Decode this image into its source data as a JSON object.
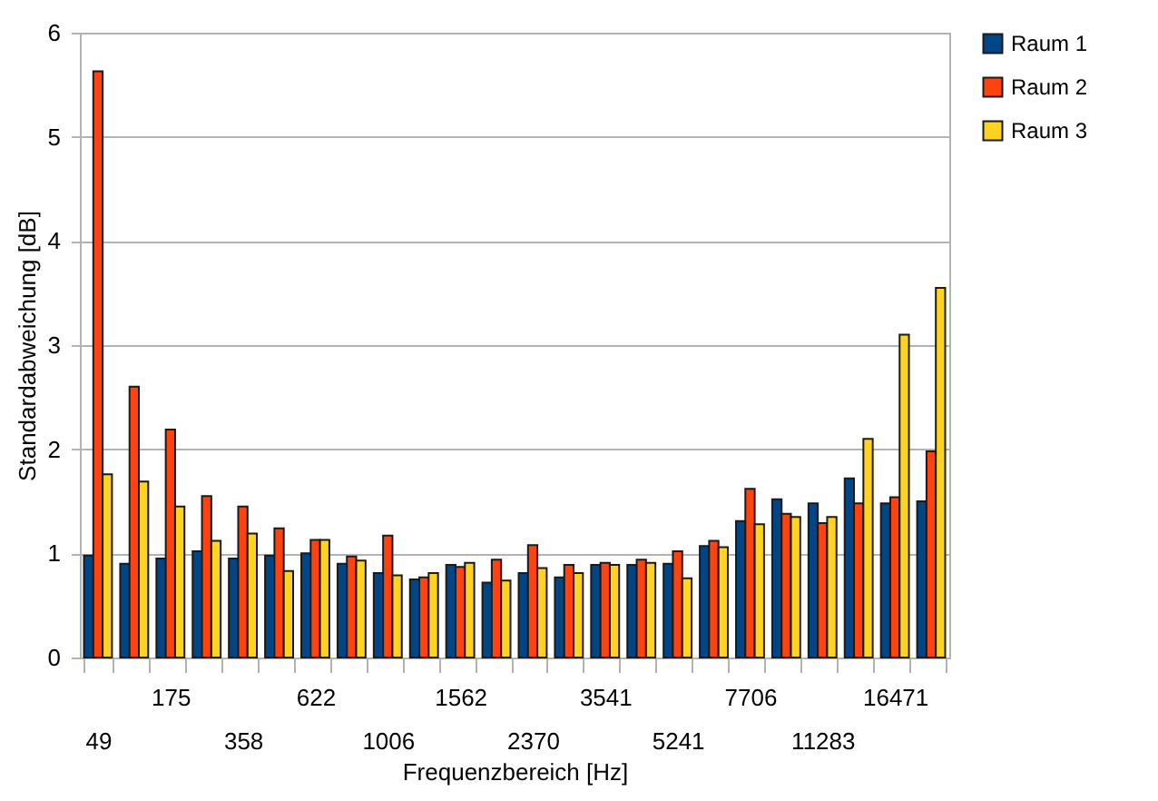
{
  "chart_data": {
    "type": "bar",
    "xlabel": "Frequenzbereich [Hz]",
    "ylabel": "Standardabweichung [dB]",
    "categories": [
      "49",
      null,
      "175",
      null,
      "358",
      null,
      "622",
      null,
      "1006",
      null,
      "1562",
      null,
      "2370",
      null,
      "3541",
      null,
      "5241",
      null,
      "7706",
      null,
      "11283",
      null,
      "16471",
      null
    ],
    "series": [
      {
        "name": "Raum 1",
        "color": "#004586",
        "values": [
          0.98,
          0.9,
          0.95,
          1.02,
          0.95,
          0.98,
          1.0,
          0.9,
          0.81,
          0.75,
          0.89,
          0.72,
          0.81,
          0.77,
          0.89,
          0.89,
          0.9,
          1.07,
          1.31,
          1.52,
          1.48,
          1.72,
          1.48,
          1.5
        ]
      },
      {
        "name": "Raum 2",
        "color": "#ff420e",
        "values": [
          5.63,
          2.6,
          2.19,
          1.55,
          1.45,
          1.24,
          1.13,
          0.97,
          1.17,
          0.77,
          0.87,
          0.94,
          1.08,
          0.89,
          0.91,
          0.94,
          1.02,
          1.12,
          1.62,
          1.38,
          1.29,
          1.48,
          1.54,
          1.98
        ]
      },
      {
        "name": "Raum 3",
        "color": "#ffd320",
        "values": [
          1.76,
          1.69,
          1.45,
          1.12,
          1.19,
          0.83,
          1.13,
          0.93,
          0.79,
          0.81,
          0.91,
          0.74,
          0.86,
          0.81,
          0.89,
          0.91,
          0.76,
          1.06,
          1.28,
          1.35,
          1.35,
          2.1,
          3.1,
          3.55
        ]
      }
    ],
    "ylim": [
      0,
      6
    ],
    "yticks": [
      0,
      1,
      2,
      3,
      4,
      5,
      6
    ],
    "grid": "y",
    "legend": "right"
  }
}
